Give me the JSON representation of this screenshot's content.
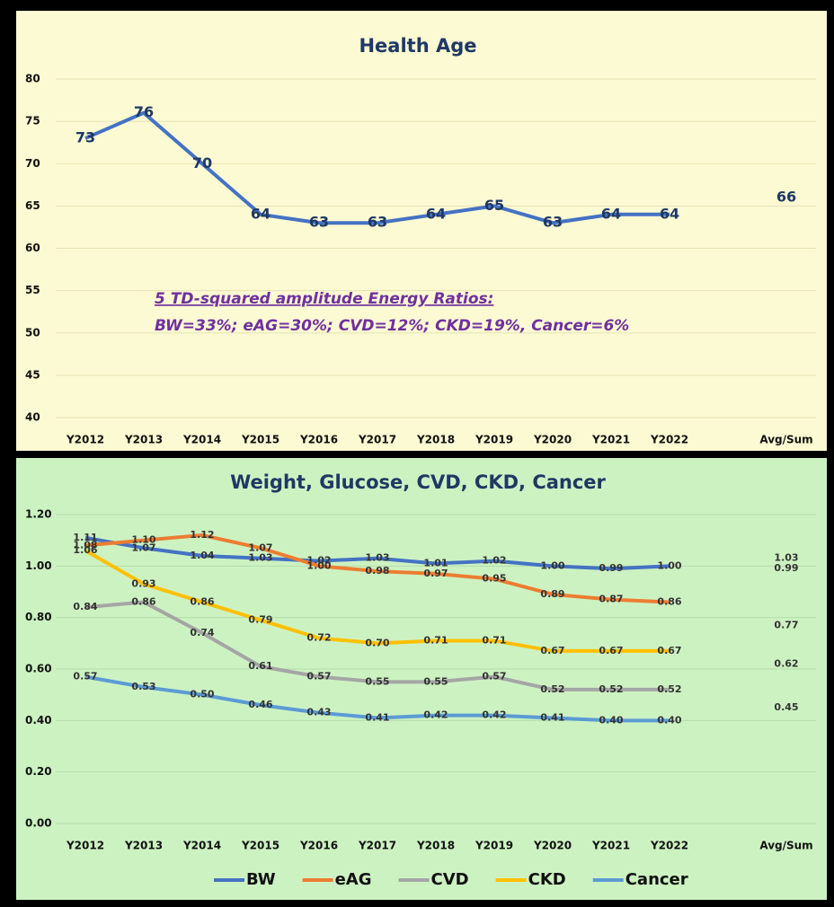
{
  "chart_data": [
    {
      "type": "line",
      "title": "Health Age",
      "categories": [
        "Y2012",
        "Y2013",
        "Y2014",
        "Y2015",
        "Y2016",
        "Y2017",
        "Y2018",
        "Y2019",
        "Y2020",
        "Y2021",
        "Y2022",
        null,
        "Avg/Sum"
      ],
      "values": [
        73,
        76,
        70,
        64,
        63,
        63,
        64,
        65,
        63,
        64,
        64,
        null,
        66
      ],
      "color": "#4472c4",
      "ylim": [
        40,
        80
      ],
      "yticks": [
        40,
        45,
        50,
        55,
        60,
        65,
        70,
        75,
        80
      ],
      "grid": true,
      "annotations": [
        "5 TD-squared amplitude Energy Ratios:",
        "BW=33%; eAG=30%; CVD=12%; CKD=19%, Cancer=6%"
      ]
    },
    {
      "type": "line",
      "title": "Weight, Glucose, CVD, CKD, Cancer",
      "categories": [
        "Y2012",
        "Y2013",
        "Y2014",
        "Y2015",
        "Y2016",
        "Y2017",
        "Y2018",
        "Y2019",
        "Y2020",
        "Y2021",
        "Y2022",
        null,
        "Avg/Sum"
      ],
      "ylim": [
        0,
        1.2
      ],
      "yticks": [
        {
          "value": 0,
          "label": "0.00"
        },
        {
          "value": 0.2,
          "label": "0.20"
        },
        {
          "value": 0.4,
          "label": "0.40"
        },
        {
          "value": 0.6,
          "label": "0.60"
        },
        {
          "value": 0.8,
          "label": "0.80"
        },
        {
          "value": 1,
          "label": "1.00"
        },
        {
          "value": 1.2,
          "label": "1.20"
        }
      ],
      "grid": true,
      "legend": "bottom",
      "series": [
        {
          "name": "BW",
          "color": "#4472c4",
          "values": [
            1.11,
            1.07,
            1.04,
            1.03,
            1.02,
            1.03,
            1.01,
            1.02,
            1.0,
            0.99,
            1.0,
            null,
            1.03
          ],
          "value_labels": [
            "1.11",
            "1.07",
            "1.04",
            "1.03",
            "1.02",
            "1.03",
            "1.01",
            "1.02",
            "1.00",
            "0.99",
            "1.00",
            null,
            "1.03"
          ]
        },
        {
          "name": "eAG",
          "color": "#ed7d31",
          "values": [
            1.08,
            1.1,
            1.12,
            1.07,
            1.0,
            0.98,
            0.97,
            0.95,
            0.89,
            0.87,
            0.86,
            null,
            0.99
          ],
          "value_labels": [
            "1.08",
            "1.10",
            "1.12",
            "1.07",
            "1.00",
            "0.98",
            "0.97",
            "0.95",
            "0.89",
            "0.87",
            "0.86",
            null,
            "0.99"
          ]
        },
        {
          "name": "CVD",
          "color": "#a5a5a5",
          "values": [
            0.84,
            0.86,
            0.74,
            0.61,
            0.57,
            0.55,
            0.55,
            0.57,
            0.52,
            0.52,
            0.52,
            null,
            0.62
          ],
          "value_labels": [
            "0.84",
            "0.86",
            "0.74",
            "0.61",
            "0.57",
            "0.55",
            "0.55",
            "0.57",
            "0.52",
            "0.52",
            "0.52",
            null,
            "0.62"
          ]
        },
        {
          "name": "CKD",
          "color": "#ffc000",
          "values": [
            1.06,
            0.93,
            0.86,
            0.79,
            0.72,
            0.7,
            0.71,
            0.71,
            0.67,
            0.67,
            0.67,
            null,
            0.77
          ],
          "value_labels": [
            "1.06",
            "0.93",
            "0.86",
            "0.79",
            "0.72",
            "0.70",
            "0.71",
            "0.71",
            "0.67",
            "0.67",
            "0.67",
            null,
            "0.77"
          ]
        },
        {
          "name": "Cancer",
          "color": "#5b9bd5",
          "values": [
            0.57,
            0.53,
            0.5,
            0.46,
            0.43,
            0.41,
            0.42,
            0.42,
            0.41,
            0.4,
            0.4,
            null,
            0.45
          ],
          "value_labels": [
            "0.57",
            "0.53",
            "0.50",
            "0.46",
            "0.43",
            "0.41",
            "0.42",
            "0.42",
            "0.41",
            "0.40",
            "0.40",
            null,
            "0.45"
          ]
        }
      ]
    }
  ]
}
